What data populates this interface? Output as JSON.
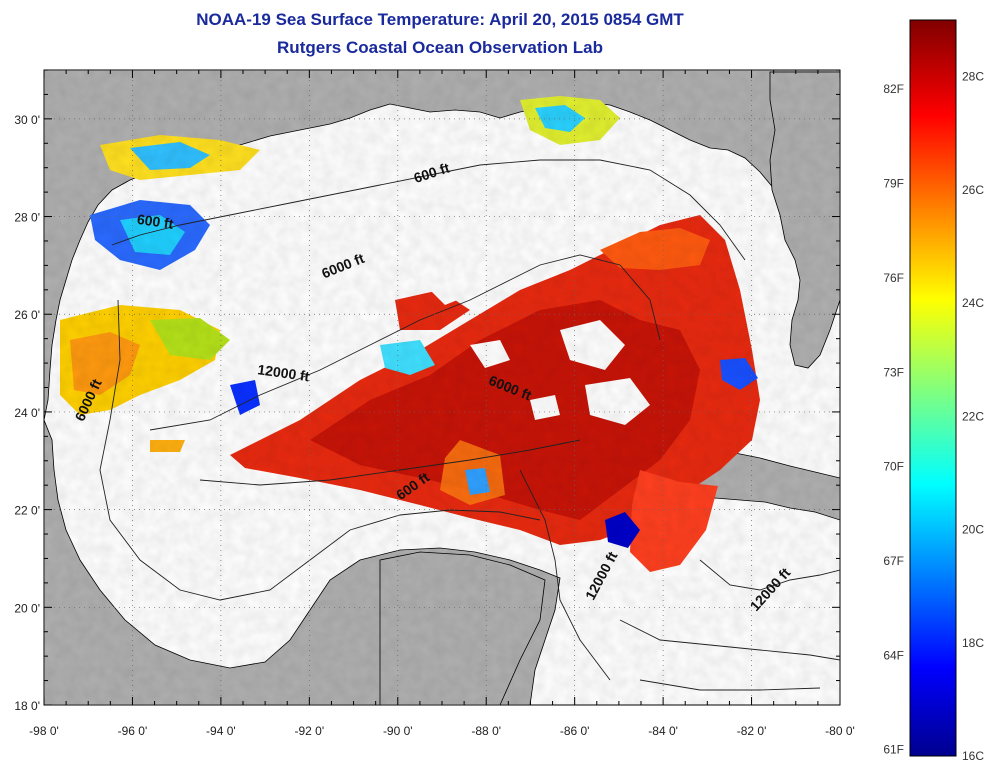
{
  "title": {
    "line1": "NOAA-19 Sea Surface Temperature:  April 20, 2015 0854 GMT",
    "line2": "Rutgers Coastal Ocean Observation Lab"
  },
  "axes": {
    "x_ticks": [
      "-98 0'",
      "-96 0'",
      "-94 0'",
      "-92 0'",
      "-90 0'",
      "-88 0'",
      "-86 0'",
      "-84 0'",
      "-82 0'",
      "-80 0'"
    ],
    "y_ticks": [
      "30 0'",
      "28 0'",
      "26 0'",
      "24 0'",
      "22 0'",
      "20 0'",
      "18 0'"
    ],
    "lon_range": [
      -98,
      -80
    ],
    "lat_range": [
      18,
      31
    ]
  },
  "contour_labels": [
    {
      "text": "600 ft",
      "lon": -89.2,
      "lat": 28.8,
      "rot": -18
    },
    {
      "text": "600 ft",
      "lon": -95.5,
      "lat": 27.8,
      "rot": 8
    },
    {
      "text": "6000 ft",
      "lon": -91.2,
      "lat": 26.9,
      "rot": -22
    },
    {
      "text": "12000 ft",
      "lon": -92.6,
      "lat": 24.7,
      "rot": 8
    },
    {
      "text": "6000 ft",
      "lon": -96.9,
      "lat": 24.2,
      "rot": -65
    },
    {
      "text": "6000 ft",
      "lon": -87.5,
      "lat": 24.4,
      "rot": 22
    },
    {
      "text": "600 ft",
      "lon": -89.6,
      "lat": 22.4,
      "rot": -35
    },
    {
      "text": "12000 ft",
      "lon": -85.3,
      "lat": 20.6,
      "rot": -62
    },
    {
      "text": "12000 ft",
      "lon": -81.5,
      "lat": 20.3,
      "rot": -48
    }
  ],
  "colorbar": {
    "fahrenheit_labels": [
      "82F",
      "79F",
      "76F",
      "73F",
      "70F",
      "67F",
      "64F",
      "61F"
    ],
    "celsius_labels": [
      "28C",
      "26C",
      "24C",
      "22C",
      "20C",
      "18C",
      "16C"
    ],
    "c_min": 16,
    "c_max": 29
  },
  "colors": {
    "land": "#b0b0b0",
    "water_nodata": "#ffffff",
    "title": "#1a2a9c"
  }
}
